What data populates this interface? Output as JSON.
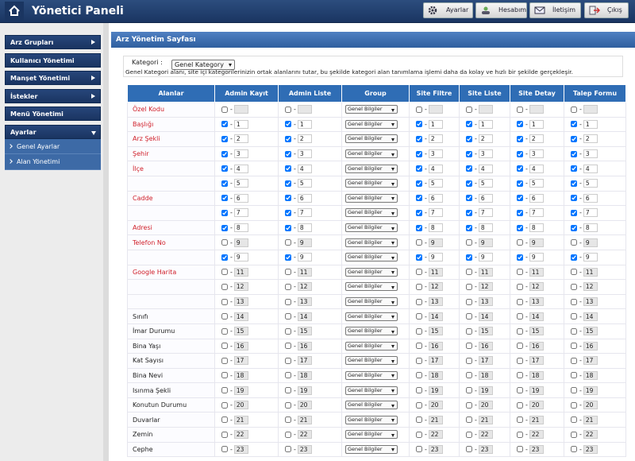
{
  "header": {
    "title": "Yönetici Paneli",
    "buttons": [
      "Ayarlar",
      "Hesabım",
      "İletişim",
      "Çıkış"
    ]
  },
  "sidebar": {
    "items": [
      {
        "label": "Arz Grupları",
        "submenu": "closed"
      },
      {
        "label": "Kullanıcı Yönetimi",
        "submenu": null
      },
      {
        "label": "Manşet Yönetimi",
        "submenu": "closed"
      },
      {
        "label": "İstekler",
        "submenu": "closed"
      },
      {
        "label": "Menü Yönetimi",
        "submenu": null
      },
      {
        "label": "Ayarlar",
        "submenu": "open"
      }
    ],
    "subitems": [
      "Genel Ayarlar",
      "Alan Yönetimi"
    ]
  },
  "main": {
    "page_title": "Arz Yönetim Sayfası",
    "category_label": "Kategori :",
    "category_value": "Genel Kategory",
    "description": "Genel Kategori alanı, site içi kategorilerinizin ortak alanlarını tutar, bu şekilde kategori alan tanımlama işlemi daha da kolay ve hızlı bir şekilde gerçekleşir."
  },
  "table": {
    "columns": [
      "Alanlar",
      "Admin Kayıt",
      "Admin Liste",
      "Group",
      "Site Filtre",
      "Site Liste",
      "Site Detay",
      "Talep Formu"
    ],
    "separator": "-",
    "rows": [
      {
        "label": "Özel Kodu",
        "required": true,
        "group": "Genel Bilgiler",
        "checked": [
          false,
          false,
          false,
          false,
          false,
          false
        ],
        "order": [
          null,
          null,
          null,
          null,
          null,
          null
        ]
      },
      {
        "label": "Başlığı",
        "required": true,
        "group": "Genel Bilgiler",
        "checked": [
          true,
          true,
          true,
          true,
          true,
          true
        ],
        "order": [
          1,
          1,
          1,
          1,
          1,
          1
        ]
      },
      {
        "label": "Arz Şekli",
        "required": true,
        "group": "Genel Bilgiler",
        "checked": [
          true,
          true,
          true,
          true,
          true,
          true
        ],
        "order": [
          2,
          2,
          2,
          2,
          2,
          2
        ]
      },
      {
        "label": "Şehir",
        "required": true,
        "group": "Genel Bilgiler",
        "checked": [
          true,
          true,
          true,
          true,
          true,
          true
        ],
        "order": [
          3,
          3,
          3,
          3,
          3,
          3
        ]
      },
      {
        "label": "İlçe",
        "required": true,
        "group": "Genel Bilgiler",
        "checked": [
          true,
          true,
          true,
          true,
          true,
          true
        ],
        "order": [
          4,
          4,
          4,
          4,
          4,
          4
        ]
      },
      {
        "label": null,
        "required": false,
        "group": "Genel Bilgiler",
        "checked": [
          true,
          true,
          true,
          true,
          true,
          true
        ],
        "order": [
          5,
          5,
          5,
          5,
          5,
          5
        ]
      },
      {
        "label": "Cadde",
        "required": true,
        "group": "Genel Bilgiler",
        "checked": [
          true,
          true,
          true,
          true,
          true,
          true
        ],
        "order": [
          6,
          6,
          6,
          6,
          6,
          6
        ]
      },
      {
        "label": null,
        "required": false,
        "group": "Genel Bilgiler",
        "checked": [
          true,
          true,
          true,
          true,
          true,
          true
        ],
        "order": [
          7,
          7,
          7,
          7,
          7,
          7
        ]
      },
      {
        "label": "Adresi",
        "required": true,
        "group": "Genel Bilgiler",
        "checked": [
          true,
          true,
          true,
          true,
          true,
          true
        ],
        "order": [
          8,
          8,
          8,
          8,
          8,
          8
        ]
      },
      {
        "label": "Telefon No",
        "required": true,
        "group": "Genel Bilgiler",
        "checked": [
          false,
          false,
          false,
          false,
          false,
          false
        ],
        "order": [
          9,
          9,
          9,
          9,
          9,
          9
        ]
      },
      {
        "label": null,
        "required": false,
        "group": "Genel Bilgiler",
        "checked": [
          true,
          true,
          true,
          true,
          true,
          true
        ],
        "order": [
          9,
          9,
          9,
          9,
          9,
          9
        ]
      },
      {
        "label": "Google Harita",
        "required": true,
        "group": "Genel Bilgiler",
        "checked": [
          false,
          false,
          false,
          false,
          false,
          false
        ],
        "order": [
          11,
          11,
          11,
          11,
          11,
          11
        ]
      },
      {
        "label": null,
        "required": false,
        "group": "Genel Bilgiler",
        "checked": [
          false,
          false,
          false,
          false,
          false,
          false
        ],
        "order": [
          12,
          12,
          12,
          12,
          12,
          12
        ]
      },
      {
        "label": null,
        "required": false,
        "group": "Genel Bilgiler",
        "checked": [
          false,
          false,
          false,
          false,
          false,
          false
        ],
        "order": [
          13,
          13,
          13,
          13,
          13,
          13
        ]
      },
      {
        "label": "Sınıfı",
        "required": false,
        "group": "Genel Bilgiler",
        "checked": [
          false,
          false,
          false,
          false,
          false,
          false
        ],
        "order": [
          14,
          14,
          14,
          14,
          14,
          14
        ]
      },
      {
        "label": "İmar Durumu",
        "required": false,
        "group": "Genel Bilgiler",
        "checked": [
          false,
          false,
          false,
          false,
          false,
          false
        ],
        "order": [
          15,
          15,
          15,
          15,
          15,
          15
        ]
      },
      {
        "label": "Bina Yaşı",
        "required": false,
        "group": "Genel Bilgiler",
        "checked": [
          false,
          false,
          false,
          false,
          false,
          false
        ],
        "order": [
          16,
          16,
          16,
          16,
          16,
          16
        ]
      },
      {
        "label": "Kat Sayısı",
        "required": false,
        "group": "Genel Bilgiler",
        "checked": [
          false,
          false,
          false,
          false,
          false,
          false
        ],
        "order": [
          17,
          17,
          17,
          17,
          17,
          17
        ]
      },
      {
        "label": "Bina Nevi",
        "required": false,
        "group": "Genel Bilgiler",
        "checked": [
          false,
          false,
          false,
          false,
          false,
          false
        ],
        "order": [
          18,
          18,
          18,
          18,
          18,
          18
        ]
      },
      {
        "label": "Isınma Şekli",
        "required": false,
        "group": "Genel Bilgiler",
        "checked": [
          false,
          false,
          false,
          false,
          false,
          false
        ],
        "order": [
          19,
          19,
          19,
          19,
          19,
          19
        ]
      },
      {
        "label": "Konutun Durumu",
        "required": false,
        "group": "Genel Bilgiler",
        "checked": [
          false,
          false,
          false,
          false,
          false,
          false
        ],
        "order": [
          20,
          20,
          20,
          20,
          20,
          20
        ]
      },
      {
        "label": "Duvarlar",
        "required": false,
        "group": "Genel Bilgiler",
        "checked": [
          false,
          false,
          false,
          false,
          false,
          false
        ],
        "order": [
          21,
          21,
          21,
          21,
          21,
          21
        ]
      },
      {
        "label": "Zemin",
        "required": false,
        "group": "Genel Bilgiler",
        "checked": [
          false,
          false,
          false,
          false,
          false,
          false
        ],
        "order": [
          22,
          22,
          22,
          22,
          22,
          22
        ]
      },
      {
        "label": "Cephe",
        "required": false,
        "group": "Genel Bilgiler",
        "checked": [
          false,
          false,
          false,
          false,
          false,
          false
        ],
        "order": [
          23,
          23,
          23,
          23,
          23,
          23
        ]
      }
    ]
  }
}
